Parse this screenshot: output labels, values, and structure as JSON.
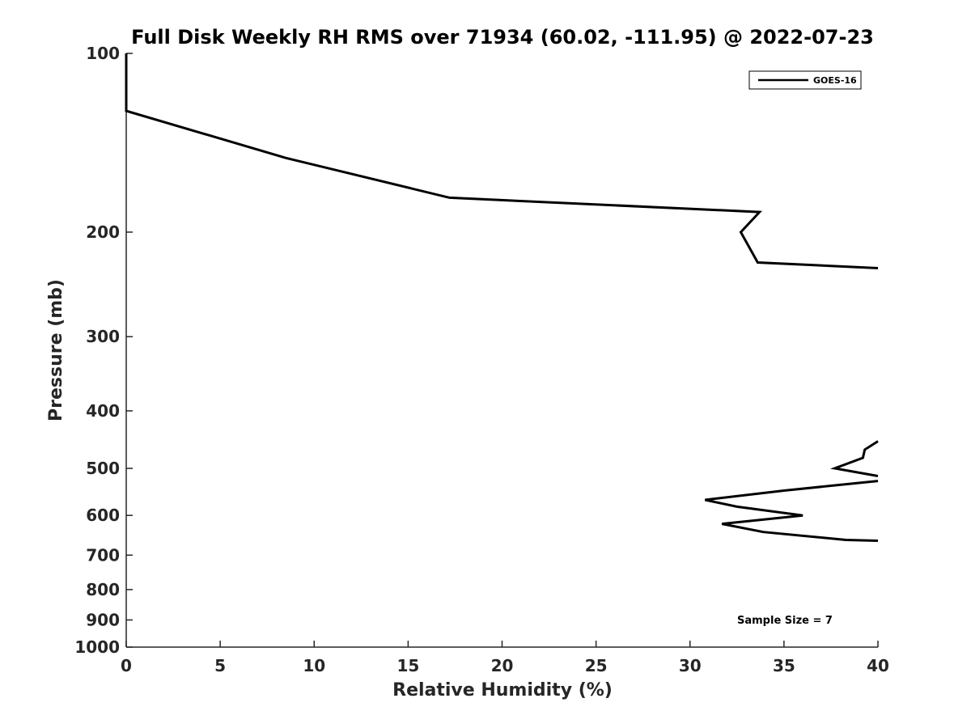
{
  "chart_data": {
    "type": "line",
    "title": "Full Disk Weekly RH RMS over 71934 (60.02, -111.95) @ 2022-07-23",
    "xlabel": "Relative Humidity (%)",
    "ylabel": "Pressure (mb)",
    "xlim": [
      0,
      40
    ],
    "ylim": [
      100,
      1000
    ],
    "yscale": "log",
    "yreversed": true,
    "xticks": [
      0,
      5,
      10,
      15,
      20,
      25,
      30,
      35,
      40
    ],
    "xtick_labels": [
      "0",
      "5",
      "10",
      "15",
      "20",
      "25",
      "30",
      "35",
      "40"
    ],
    "yticks": [
      100,
      200,
      300,
      400,
      500,
      600,
      700,
      800,
      900,
      1000
    ],
    "ytick_labels": [
      "100",
      "200",
      "300",
      "400",
      "500",
      "600",
      "700",
      "800",
      "900",
      "1000"
    ],
    "grid": false,
    "legend_position": "top-right",
    "annotation": "Sample Size = 7",
    "series": [
      {
        "name": "GOES-16",
        "color": "#000000",
        "segments": [
          {
            "x": [
              0,
              0,
              8.5,
              17.2,
              33.7,
              32.7,
              33.6,
              40
            ],
            "y": [
              100,
              125,
              150,
              175,
              185,
              200,
              225,
              230
            ]
          },
          {
            "x": [
              40,
              39.3,
              39.2,
              37.7,
              40
            ],
            "y": [
              450,
              465,
              480,
              500,
              515
            ]
          },
          {
            "x": [
              40,
              35,
              30.8,
              32.5,
              36,
              31.7,
              33.9,
              38.3,
              40
            ],
            "y": [
              525,
              545,
              565,
              580,
              600,
              620,
              640,
              660,
              662
            ]
          }
        ]
      }
    ]
  }
}
